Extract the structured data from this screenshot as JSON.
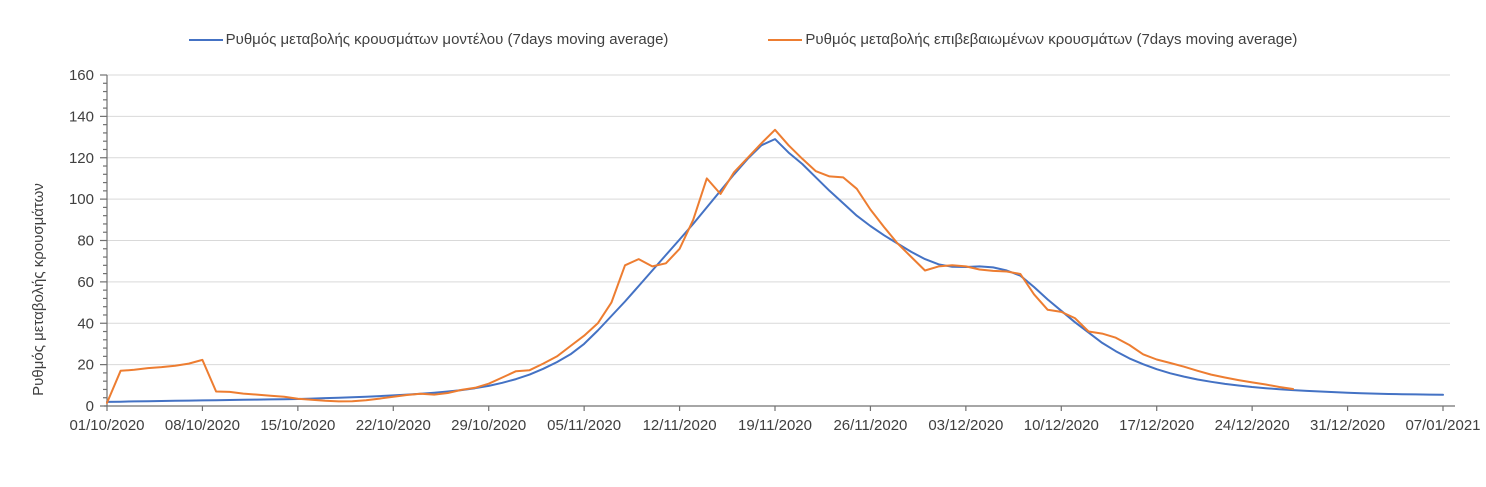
{
  "chart_data": {
    "type": "line",
    "title": "",
    "ylabel": "Ρυθμός μεταβολής κρουσμάτων",
    "xlabel": "",
    "ylim": [
      0,
      160
    ],
    "y_tick_step": 20,
    "y_minor_tick_step": 4,
    "y_tick_labels": [
      "0",
      "20",
      "40",
      "60",
      "80",
      "100",
      "120",
      "140",
      "160"
    ],
    "x_tick_labels": [
      "01/10/2020",
      "08/10/2020",
      "15/10/2020",
      "22/10/2020",
      "29/10/2020",
      "05/11/2020",
      "12/11/2020",
      "19/11/2020",
      "26/11/2020",
      "03/12/2020",
      "10/12/2020",
      "17/12/2020",
      "24/12/2020",
      "31/12/2020",
      "07/01/2021"
    ],
    "days_per_tick": 7,
    "total_days": 99,
    "grid": true,
    "legend_position": "top",
    "grid_color": "#d9d9d9",
    "axis_color": "#707070",
    "text_color": "#404040",
    "series": [
      {
        "name": "Ρυθμός μεταβολής κρουσμάτων μοντέλου (7days moving average)",
        "color": "#4472c4",
        "start_day": 0,
        "values": [
          2.0,
          2.1,
          2.2,
          2.3,
          2.4,
          2.5,
          2.6,
          2.7,
          2.8,
          2.9,
          3.0,
          3.1,
          3.2,
          3.3,
          3.4,
          3.6,
          3.8,
          4.0,
          4.2,
          4.5,
          4.8,
          5.1,
          5.5,
          5.9,
          6.4,
          7.0,
          7.7,
          8.6,
          9.7,
          11.2,
          13.0,
          15.2,
          18.0,
          21.2,
          25.0,
          30.0,
          36.5,
          43.5,
          50.5,
          58.0,
          65.5,
          73.0,
          80.5,
          88.0,
          96.0,
          104.0,
          112.0,
          119.5,
          126.0,
          129.0,
          122.5,
          117.0,
          110.5,
          104.0,
          98.0,
          92.0,
          87.0,
          82.5,
          78.5,
          74.5,
          71.0,
          68.5,
          67.3,
          67.2,
          67.5,
          67.0,
          65.5,
          63.0,
          57.5,
          51.5,
          46.0,
          40.5,
          35.5,
          30.5,
          26.5,
          23.0,
          20.2,
          17.8,
          15.8,
          14.2,
          12.8,
          11.7,
          10.7,
          9.9,
          9.2,
          8.6,
          8.1,
          7.7,
          7.3,
          7.0,
          6.7,
          6.4,
          6.2,
          6.0,
          5.8,
          5.7,
          5.6,
          5.5,
          5.4
        ]
      },
      {
        "name": "Ρυθμός μεταβολής επιβεβαιωμένων κρουσμάτων (7days moving average)",
        "color": "#ed7d31",
        "start_day": 0,
        "values": [
          1.5,
          17.0,
          17.5,
          18.3,
          18.8,
          19.5,
          20.5,
          22.3,
          7.0,
          6.8,
          6.0,
          5.5,
          5.0,
          4.5,
          3.5,
          3.0,
          2.5,
          2.2,
          2.3,
          2.8,
          3.6,
          4.5,
          5.3,
          5.9,
          5.5,
          6.3,
          7.8,
          8.8,
          10.8,
          13.8,
          16.8,
          17.3,
          20.5,
          24.0,
          29.0,
          34.0,
          40.0,
          50.0,
          68.0,
          71.0,
          67.5,
          69.0,
          76.0,
          90.0,
          110.0,
          102.5,
          113.0,
          120.0,
          127.0,
          133.5,
          126.0,
          119.5,
          113.5,
          111.0,
          110.5,
          105.0,
          95.0,
          86.5,
          78.5,
          72.0,
          65.5,
          67.5,
          68.0,
          67.5,
          66.0,
          65.3,
          65.0,
          63.8,
          54.0,
          46.5,
          45.5,
          42.5,
          36.0,
          35.0,
          33.0,
          29.5,
          25.0,
          22.5,
          20.8,
          19.0,
          17.0,
          15.2,
          13.8,
          12.5,
          11.4,
          10.4,
          9.2,
          8.2
        ]
      }
    ]
  }
}
